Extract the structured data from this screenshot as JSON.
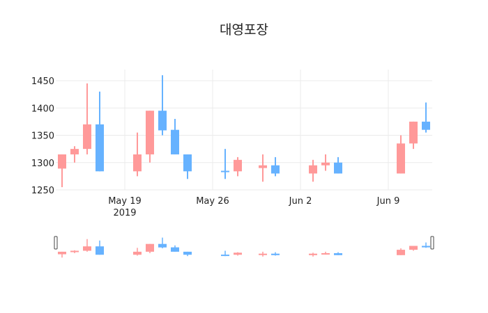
{
  "chart_data": {
    "type": "candlestick",
    "title": "대영포장",
    "xlabel": "",
    "ylabel": "",
    "ylim": [
      1245,
      1470
    ],
    "yticks": [
      1250,
      1300,
      1350,
      1400,
      1450
    ],
    "xticks": [
      {
        "date": "2019-05-19",
        "label": "May 19",
        "sublabel": "2019"
      },
      {
        "date": "2019-05-26",
        "label": "May 26",
        "sublabel": ""
      },
      {
        "date": "2019-06-02",
        "label": "Jun 2",
        "sublabel": ""
      },
      {
        "date": "2019-06-09",
        "label": "Jun 9",
        "sublabel": ""
      }
    ],
    "grid": true,
    "increasing_color": "#FF9999",
    "decreasing_color": "#66B2FF",
    "rangeslider": true,
    "candles": [
      {
        "date": "2019-05-14",
        "open": 1289,
        "high": 1315,
        "low": 1255,
        "close": 1315
      },
      {
        "date": "2019-05-15",
        "open": 1315,
        "high": 1330,
        "low": 1300,
        "close": 1325
      },
      {
        "date": "2019-05-16",
        "open": 1325,
        "high": 1445,
        "low": 1315,
        "close": 1370
      },
      {
        "date": "2019-05-17",
        "open": 1370,
        "high": 1430,
        "low": 1284,
        "close": 1284
      },
      {
        "date": "2019-05-20",
        "open": 1284,
        "high": 1355,
        "low": 1275,
        "close": 1315
      },
      {
        "date": "2019-05-21",
        "open": 1315,
        "high": 1395,
        "low": 1300,
        "close": 1395
      },
      {
        "date": "2019-05-22",
        "open": 1395,
        "high": 1460,
        "low": 1350,
        "close": 1359
      },
      {
        "date": "2019-05-23",
        "open": 1360,
        "high": 1380,
        "low": 1315,
        "close": 1315
      },
      {
        "date": "2019-05-24",
        "open": 1315,
        "high": 1315,
        "low": 1270,
        "close": 1284
      },
      {
        "date": "2019-05-27",
        "open": 1285,
        "high": 1325,
        "low": 1270,
        "close": 1284
      },
      {
        "date": "2019-05-28",
        "open": 1284,
        "high": 1310,
        "low": 1275,
        "close": 1305
      },
      {
        "date": "2019-05-30",
        "open": 1290,
        "high": 1315,
        "low": 1265,
        "close": 1295
      },
      {
        "date": "2019-05-31",
        "open": 1295,
        "high": 1310,
        "low": 1275,
        "close": 1280
      },
      {
        "date": "2019-06-03",
        "open": 1280,
        "high": 1305,
        "low": 1265,
        "close": 1295
      },
      {
        "date": "2019-06-04",
        "open": 1295,
        "high": 1315,
        "low": 1285,
        "close": 1300
      },
      {
        "date": "2019-06-05",
        "open": 1300,
        "high": 1310,
        "low": 1280,
        "close": 1280
      },
      {
        "date": "2019-06-10",
        "open": 1280,
        "high": 1350,
        "low": 1280,
        "close": 1335
      },
      {
        "date": "2019-06-11",
        "open": 1335,
        "high": 1375,
        "low": 1325,
        "close": 1375
      },
      {
        "date": "2019-06-12",
        "open": 1375,
        "high": 1410,
        "low": 1355,
        "close": 1360
      }
    ]
  }
}
